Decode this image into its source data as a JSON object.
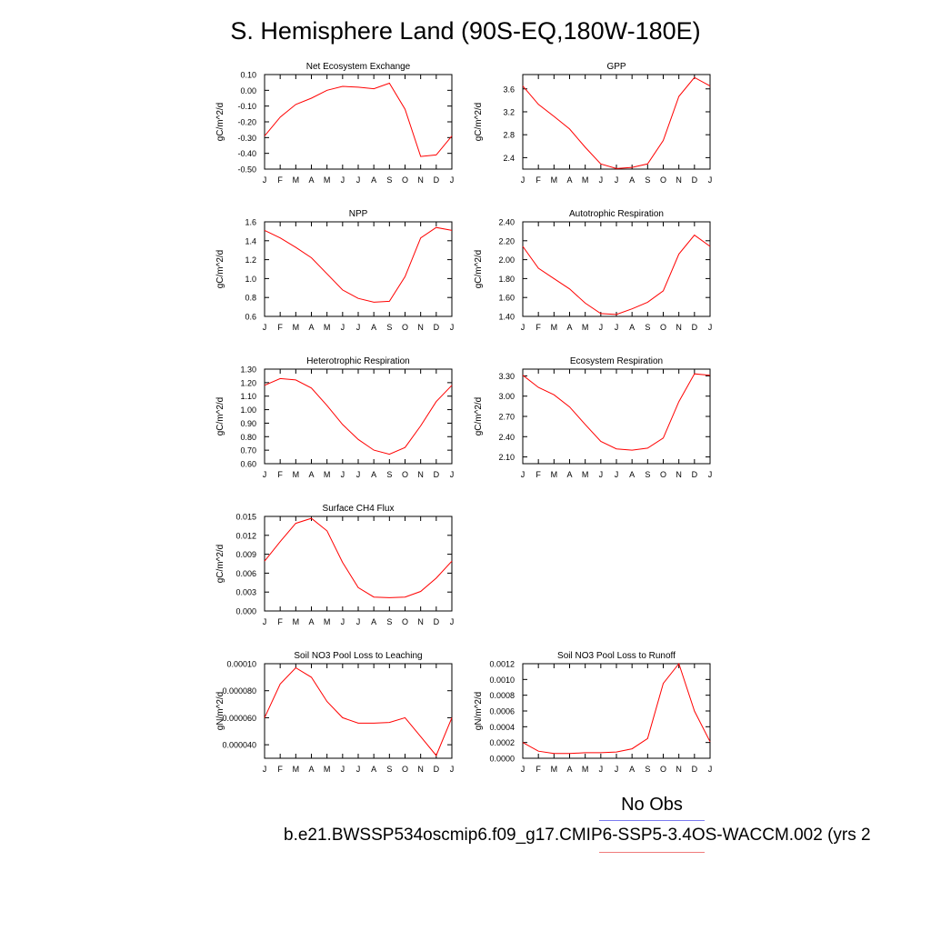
{
  "title": "S. Hemisphere Land (90S-EQ,180W-180E)",
  "legend": {
    "obs_label": "No Obs",
    "case_label": "b.e21.BWSSP534oscmip6.f09_g17.CMIP6-SSP5-3.4OS-WACCM.002 (yrs 2",
    "obs_color": "#7b7bf0",
    "case_color": "#f07b7b"
  },
  "colors": {
    "series": "#ff0000",
    "axis": "#000000"
  },
  "chart_data": [
    {
      "type": "line",
      "title": "Net Ecosystem Exchange",
      "ylabel": "gC/m^2/d",
      "categories": [
        "J",
        "F",
        "M",
        "A",
        "M",
        "J",
        "J",
        "A",
        "S",
        "O",
        "N",
        "D",
        "J"
      ],
      "ylim": [
        -0.5,
        0.1
      ],
      "yticks": [
        "0.10",
        "0.00",
        "-0.10",
        "-0.20",
        "-0.30",
        "-0.40",
        "-0.50"
      ],
      "values": [
        -0.29,
        -0.17,
        -0.09,
        -0.05,
        0.0,
        0.025,
        0.02,
        0.01,
        0.045,
        -0.12,
        -0.42,
        -0.41,
        -0.29
      ]
    },
    {
      "type": "line",
      "title": "GPP",
      "ylabel": "gC/m^2/d",
      "categories": [
        "J",
        "F",
        "M",
        "A",
        "M",
        "J",
        "J",
        "A",
        "S",
        "O",
        "N",
        "D",
        "J"
      ],
      "ylim": [
        2.2,
        3.85
      ],
      "yticks": [
        "3.6",
        "3.2",
        "2.8",
        "2.4"
      ],
      "values": [
        3.65,
        3.33,
        3.12,
        2.9,
        2.58,
        2.29,
        2.21,
        2.23,
        2.29,
        2.7,
        3.47,
        3.8,
        3.65
      ]
    },
    {
      "type": "line",
      "title": "NPP",
      "ylabel": "gC/m^2/d",
      "categories": [
        "J",
        "F",
        "M",
        "A",
        "M",
        "J",
        "J",
        "A",
        "S",
        "O",
        "N",
        "D",
        "J"
      ],
      "ylim": [
        0.6,
        1.6
      ],
      "yticks": [
        "1.6",
        "1.4",
        "1.2",
        "1.0",
        "0.8",
        "0.6"
      ],
      "values": [
        1.51,
        1.43,
        1.33,
        1.22,
        1.05,
        0.88,
        0.79,
        0.75,
        0.76,
        1.02,
        1.43,
        1.54,
        1.51
      ]
    },
    {
      "type": "line",
      "title": "Autotrophic Respiration",
      "ylabel": "gC/m^2/d",
      "categories": [
        "J",
        "F",
        "M",
        "A",
        "M",
        "J",
        "J",
        "A",
        "S",
        "O",
        "N",
        "D",
        "J"
      ],
      "ylim": [
        1.4,
        2.4
      ],
      "yticks": [
        "2.40",
        "2.20",
        "2.00",
        "1.80",
        "1.60",
        "1.40"
      ],
      "values": [
        2.14,
        1.91,
        1.8,
        1.69,
        1.54,
        1.43,
        1.42,
        1.48,
        1.55,
        1.67,
        2.06,
        2.26,
        2.14
      ]
    },
    {
      "type": "line",
      "title": "Heterotrophic Respiration",
      "ylabel": "gC/m^2/d",
      "categories": [
        "J",
        "F",
        "M",
        "A",
        "M",
        "J",
        "J",
        "A",
        "S",
        "O",
        "N",
        "D",
        "J"
      ],
      "ylim": [
        0.6,
        1.3
      ],
      "yticks": [
        "1.30",
        "1.20",
        "1.10",
        "1.00",
        "0.90",
        "0.80",
        "0.70",
        "0.60"
      ],
      "values": [
        1.18,
        1.23,
        1.22,
        1.16,
        1.03,
        0.89,
        0.78,
        0.7,
        0.67,
        0.72,
        0.88,
        1.06,
        1.18
      ]
    },
    {
      "type": "line",
      "title": "Ecosystem Respiration",
      "ylabel": "gC/m^2/d",
      "categories": [
        "J",
        "F",
        "M",
        "A",
        "M",
        "J",
        "J",
        "A",
        "S",
        "O",
        "N",
        "D",
        "J"
      ],
      "ylim": [
        2.0,
        3.4
      ],
      "yticks": [
        "3.30",
        "3.00",
        "2.70",
        "2.40",
        "2.10"
      ],
      "values": [
        3.31,
        3.13,
        3.02,
        2.84,
        2.58,
        2.33,
        2.22,
        2.2,
        2.23,
        2.38,
        2.92,
        3.33,
        3.31
      ]
    },
    {
      "type": "line",
      "title": "Surface CH4 Flux",
      "ylabel": "gC/m^2/d",
      "categories": [
        "J",
        "F",
        "M",
        "A",
        "M",
        "J",
        "J",
        "A",
        "S",
        "O",
        "N",
        "D",
        "J"
      ],
      "ylim": [
        0.0,
        0.015
      ],
      "yticks": [
        "0.015",
        "0.012",
        "0.009",
        "0.006",
        "0.003",
        "0.000"
      ],
      "values": [
        0.0079,
        0.011,
        0.0139,
        0.0147,
        0.0127,
        0.0077,
        0.0037,
        0.0022,
        0.0021,
        0.0022,
        0.0031,
        0.0052,
        0.0079
      ]
    },
    {
      "type": "line",
      "title": "Soil NO3 Pool Loss to Leaching",
      "ylabel": "gN/m^2/d",
      "categories": [
        "J",
        "F",
        "M",
        "A",
        "M",
        "J",
        "J",
        "A",
        "S",
        "O",
        "N",
        "D",
        "J"
      ],
      "ylim": [
        3e-05,
        0.0001
      ],
      "yticks": [
        "0.00010",
        "0.000080",
        "0.000060",
        "0.000040"
      ],
      "values": [
        6e-05,
        8.5e-05,
        9.7e-05,
        9e-05,
        7.2e-05,
        6e-05,
        5.6e-05,
        5.6e-05,
        5.65e-05,
        6e-05,
        4.6e-05,
        3.2e-05,
        6e-05
      ]
    },
    {
      "type": "line",
      "title": "Soil NO3 Pool Loss to Runoff",
      "ylabel": "gN/m^2/d",
      "categories": [
        "J",
        "F",
        "M",
        "A",
        "M",
        "J",
        "J",
        "A",
        "S",
        "O",
        "N",
        "D",
        "J"
      ],
      "ylim": [
        0.0,
        0.0012
      ],
      "yticks": [
        "0.0012",
        "0.0010",
        "0.0008",
        "0.0006",
        "0.0004",
        "0.0002",
        "0.0000"
      ],
      "values": [
        0.0002,
        9e-05,
        6e-05,
        6e-05,
        7e-05,
        7e-05,
        8e-05,
        0.00012,
        0.00025,
        0.00095,
        0.0012,
        0.0006,
        0.00021
      ]
    }
  ]
}
